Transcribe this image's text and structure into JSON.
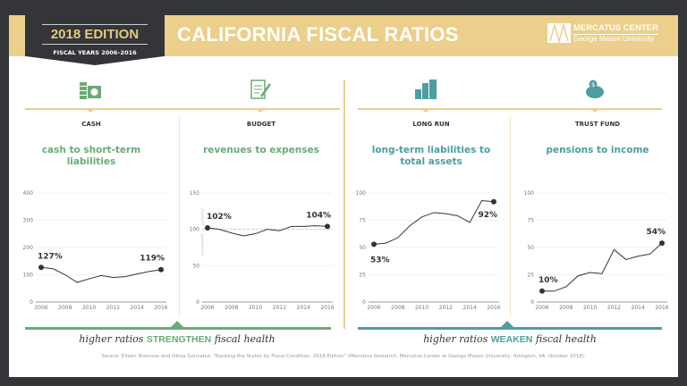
{
  "header": {
    "edition": "2018 EDITION",
    "fiscal_years": "FISCAL YEARS 2006–2016",
    "title": "CALIFORNIA FISCAL RATIOS",
    "logo_line1": "MERCATUS CENTER",
    "logo_line2": "George Mason University"
  },
  "colors": {
    "gold": "#ebcf8a",
    "dark": "#333539",
    "green": "#6aab75",
    "teal": "#4d9da1"
  },
  "chart_data": [
    {
      "type": "line",
      "label": "CASH",
      "title": "cash to short-term liabilities",
      "icon": "cash-stack-icon",
      "x": [
        2006,
        2007,
        2008,
        2009,
        2010,
        2011,
        2012,
        2013,
        2014,
        2015,
        2016
      ],
      "values": [
        127,
        122,
        100,
        72,
        85,
        97,
        90,
        93,
        103,
        112,
        119
      ],
      "ylim": [
        0,
        400
      ],
      "yticks": [
        0,
        100,
        200,
        300,
        400
      ],
      "xticks": [
        2006,
        2008,
        2010,
        2012,
        2014,
        2016
      ],
      "start_label": "127%",
      "end_label": "119%"
    },
    {
      "type": "line",
      "label": "BUDGET",
      "title": "revenues to expenses",
      "icon": "budget-document-icon",
      "x": [
        2006,
        2007,
        2008,
        2009,
        2010,
        2011,
        2012,
        2013,
        2014,
        2015,
        2016
      ],
      "values": [
        102,
        100,
        95,
        91,
        94,
        100,
        98,
        104,
        104,
        105,
        104
      ],
      "ylim": [
        0,
        150
      ],
      "yticks": [
        0,
        50,
        100,
        150
      ],
      "xticks": [
        2006,
        2008,
        2010,
        2012,
        2014,
        2016
      ],
      "start_label": "102%",
      "end_label": "104%",
      "reference_line": 100,
      "above_label": "solvent",
      "below_label": "insolvent"
    },
    {
      "type": "line",
      "label": "LONG RUN",
      "title": "long-term liabilities to total assets",
      "icon": "buildings-icon",
      "x": [
        2006,
        2007,
        2008,
        2009,
        2010,
        2011,
        2012,
        2013,
        2014,
        2015,
        2016
      ],
      "values": [
        53,
        54,
        59,
        70,
        78,
        82,
        81,
        79,
        73,
        93,
        92
      ],
      "ylim": [
        0,
        100
      ],
      "yticks": [
        0,
        25,
        50,
        75,
        100
      ],
      "xticks": [
        2006,
        2008,
        2010,
        2012,
        2014,
        2016
      ],
      "start_label": "53%",
      "end_label": "92%"
    },
    {
      "type": "line",
      "label": "TRUST FUND",
      "title": "pensions to income",
      "icon": "piggy-bank-icon",
      "x": [
        2006,
        2007,
        2008,
        2009,
        2010,
        2011,
        2012,
        2013,
        2014,
        2015,
        2016
      ],
      "values": [
        10,
        10,
        14,
        24,
        27,
        26,
        48,
        39,
        42,
        44,
        54
      ],
      "ylim": [
        0,
        100
      ],
      "yticks": [
        0,
        25,
        50,
        75,
        100
      ],
      "xticks": [
        2006,
        2008,
        2010,
        2012,
        2014,
        2016
      ],
      "start_label": "10%",
      "end_label": "54%"
    }
  ],
  "footer": {
    "left_pre": "higher ratios ",
    "left_em": "STRENGTHEN",
    "left_post": " fiscal health",
    "right_pre": "higher ratios ",
    "right_em": "WEAKEN",
    "right_post": " fiscal health",
    "source": "Source: Eileen Norcross and Olivia Gonzalez, “Ranking the States by Fiscal Condition, 2018 Edition” (Mercatus Research, Mercatus Center at George Mason University, Arlington, VA, October 2018)."
  }
}
